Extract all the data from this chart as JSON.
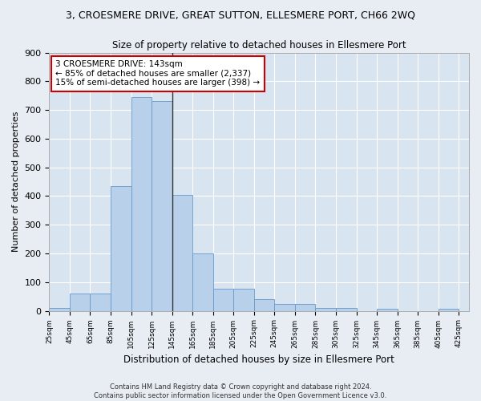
{
  "title": "3, CROESMERE DRIVE, GREAT SUTTON, ELLESMERE PORT, CH66 2WQ",
  "subtitle": "Size of property relative to detached houses in Ellesmere Port",
  "xlabel": "Distribution of detached houses by size in Ellesmere Port",
  "ylabel": "Number of detached properties",
  "footnote1": "Contains HM Land Registry data © Crown copyright and database right 2024.",
  "footnote2": "Contains public sector information licensed under the Open Government Licence v3.0.",
  "annotation_line1": "3 CROESMERE DRIVE: 143sqm",
  "annotation_line2": "← 85% of detached houses are smaller (2,337)",
  "annotation_line3": "15% of semi-detached houses are larger (398) →",
  "bar_color": "#b8d0ea",
  "bar_edge_color": "#6699cc",
  "vline_x": 145,
  "xlim_left": 25,
  "xlim_right": 435,
  "ylim": [
    0,
    900
  ],
  "bin_width": 20,
  "bins_start": 25,
  "n_bins": 20,
  "bar_values": [
    10,
    60,
    60,
    435,
    745,
    730,
    405,
    200,
    78,
    78,
    40,
    25,
    25,
    10,
    10,
    0,
    8,
    0,
    0,
    8
  ],
  "yticks": [
    0,
    100,
    200,
    300,
    400,
    500,
    600,
    700,
    800,
    900
  ],
  "xtick_labels": [
    "25sqm",
    "45sqm",
    "65sqm",
    "85sqm",
    "105sqm",
    "125sqm",
    "145sqm",
    "165sqm",
    "185sqm",
    "205sqm",
    "225sqm",
    "245sqm",
    "265sqm",
    "285sqm",
    "305sqm",
    "325sqm",
    "345sqm",
    "365sqm",
    "385sqm",
    "405sqm",
    "425sqm"
  ],
  "annotation_box_color": "#ffffff",
  "annotation_box_edge": "#cc0000",
  "bg_color": "#e8edf4",
  "plot_bg_color": "#d8e4f0",
  "title_fontsize": 9,
  "subtitle_fontsize": 8.5,
  "ylabel_fontsize": 8,
  "xlabel_fontsize": 8.5,
  "ytick_fontsize": 8,
  "xtick_fontsize": 6.5,
  "footnote_fontsize": 6,
  "annotation_fontsize": 7.5,
  "grid_color": "#ffffff"
}
